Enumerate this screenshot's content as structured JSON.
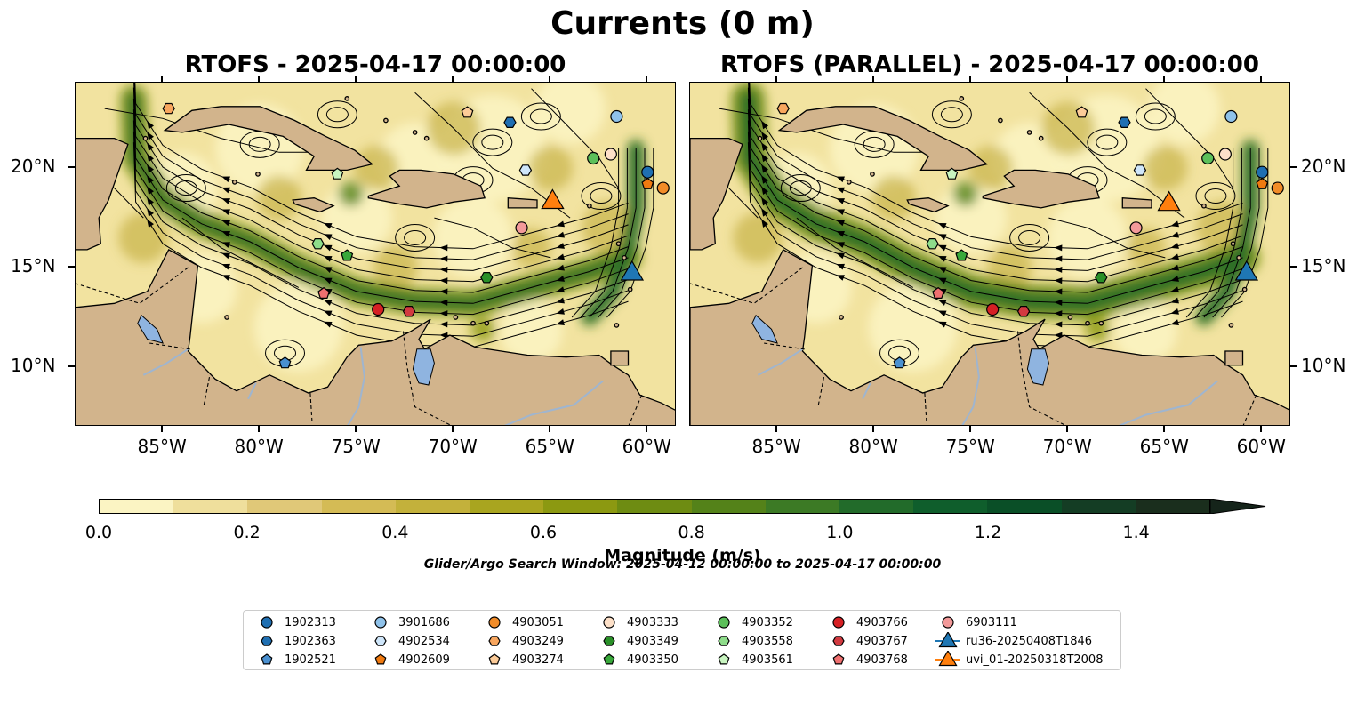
{
  "title": "Currents (0 m)",
  "panels": [
    {
      "title": "RTOFS - 2025-04-17 00:00:00"
    },
    {
      "title": "RTOFS (PARALLEL) - 2025-04-17 00:00:00"
    }
  ],
  "map": {
    "lon_range": [
      -89.5,
      -58.5
    ],
    "lat_range": [
      7.0,
      24.3
    ],
    "x_ticks": [
      "85°W",
      "80°W",
      "75°W",
      "70°W",
      "65°W",
      "60°W"
    ],
    "y_ticks": [
      "20°N",
      "15°N",
      "10°N"
    ]
  },
  "colorbar": {
    "label": "Magnitude (m/s)",
    "ticks": [
      "0.0",
      "0.2",
      "0.4",
      "0.6",
      "0.8",
      "1.0",
      "1.2",
      "1.4"
    ],
    "range": [
      0,
      1.5
    ],
    "extend": "max",
    "colors": [
      "#fbf4c3",
      "#efdf9c",
      "#e0c878",
      "#d4bb55",
      "#c3b13b",
      "#a9a51f",
      "#8c9911",
      "#6e8c12",
      "#548219",
      "#3c7a25",
      "#226b2a",
      "#0f5e2c",
      "#0a4f27",
      "#143d24",
      "#1a2e1d",
      "#15241a"
    ]
  },
  "search_window": "Glider/Argo Search Window: 2025-04-12 00:00:00 to 2025-04-17 00:00:00",
  "legend": [
    {
      "label": "1902313",
      "marker": "circle",
      "color": "#1f6fb2"
    },
    {
      "label": "1902363",
      "marker": "hexagon",
      "color": "#1f6fb2"
    },
    {
      "label": "1902521",
      "marker": "pentagon",
      "color": "#4a90d0"
    },
    {
      "label": "3901686",
      "marker": "circle",
      "color": "#8fc2ea"
    },
    {
      "label": "4902534",
      "marker": "hexagon",
      "color": "#cfe6fa"
    },
    {
      "label": "4902609",
      "marker": "pentagon",
      "color": "#f07a10"
    },
    {
      "label": "4903051",
      "marker": "circle",
      "color": "#f28c28"
    },
    {
      "label": "4903249",
      "marker": "hexagon",
      "color": "#f8a65e"
    },
    {
      "label": "4903274",
      "marker": "pentagon",
      "color": "#fccb98"
    },
    {
      "label": "4903333",
      "marker": "circle",
      "color": "#fde0c8"
    },
    {
      "label": "4903349",
      "marker": "hexagon",
      "color": "#2a9028"
    },
    {
      "label": "4903350",
      "marker": "pentagon",
      "color": "#38a83a"
    },
    {
      "label": "4903352",
      "marker": "circle",
      "color": "#5cc05a"
    },
    {
      "label": "4903558",
      "marker": "hexagon",
      "color": "#8edc8a"
    },
    {
      "label": "4903561",
      "marker": "pentagon",
      "color": "#c8f5c0"
    },
    {
      "label": "4903766",
      "marker": "circle",
      "color": "#d62024"
    },
    {
      "label": "4903767",
      "marker": "hexagon",
      "color": "#d23a40"
    },
    {
      "label": "4903768",
      "marker": "pentagon",
      "color": "#f07070"
    },
    {
      "label": "6903111",
      "marker": "circle",
      "color": "#f39a9a"
    },
    {
      "label": "ru36-20250408T1846",
      "marker": "triangle",
      "color": "#1f77b4"
    },
    {
      "label": "uvi_01-20250318T2008",
      "marker": "triangle",
      "color": "#ff7f0e"
    }
  ],
  "points": [
    {
      "id": "1902313",
      "lon": -60.0,
      "lat": 19.8
    },
    {
      "id": "1902363",
      "lon": -67.1,
      "lat": 22.3
    },
    {
      "id": "1902521",
      "lon": -78.7,
      "lat": 10.2
    },
    {
      "id": "3901686",
      "lon": -61.6,
      "lat": 22.6
    },
    {
      "id": "4902534",
      "lon": -66.3,
      "lat": 19.9
    },
    {
      "id": "4902609",
      "lon": -60.0,
      "lat": 19.2
    },
    {
      "id": "4903051",
      "lon": -59.2,
      "lat": 19.0
    },
    {
      "id": "4903249",
      "lon": -84.7,
      "lat": 23.0
    },
    {
      "id": "4903274",
      "lon": -69.3,
      "lat": 22.8
    },
    {
      "id": "4903333",
      "lon": -61.9,
      "lat": 20.7
    },
    {
      "id": "4903349",
      "lon": -68.3,
      "lat": 14.5
    },
    {
      "id": "4903350",
      "lon": -75.5,
      "lat": 15.6
    },
    {
      "id": "4903352",
      "lon": -62.8,
      "lat": 20.5
    },
    {
      "id": "4903558",
      "lon": -77.0,
      "lat": 16.2
    },
    {
      "id": "4903561",
      "lon": -76.0,
      "lat": 19.7
    },
    {
      "id": "4903766",
      "lon": -73.9,
      "lat": 12.9
    },
    {
      "id": "4903767",
      "lon": -72.3,
      "lat": 12.8
    },
    {
      "id": "4903768",
      "lon": -76.7,
      "lat": 13.7
    },
    {
      "id": "6903111",
      "lon": -66.5,
      "lat": 17.0
    },
    {
      "id": "ru36-20250408T1846",
      "lon": -60.8,
      "lat": 14.6
    },
    {
      "id": "uvi_01-20250318T2008",
      "lon": -64.9,
      "lat": 18.2
    }
  ]
}
